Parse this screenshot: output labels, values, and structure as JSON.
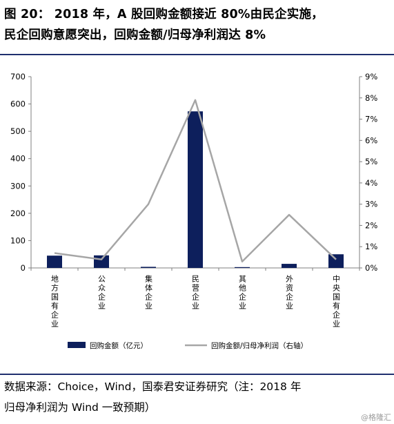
{
  "title": {
    "line1": "图 20： 2018 年，A 股回购金额接近 80%由民企实施，",
    "line2": "民企回购意愿突出，回购金额/归母净利润达 8%"
  },
  "source": {
    "line1": "数据来源：Choice，Wind，国泰君安证券研究（注：2018 年",
    "line2": "归母净利润为 Wind 一致预期）"
  },
  "watermark": "@格隆汇",
  "colors": {
    "bar": "#0d1f5c",
    "line": "#a6a6a6",
    "rule": "#1f2f6e",
    "axis": "#7f7f7f"
  },
  "chart_data": {
    "type": "bar",
    "categories": [
      "地方国有企业",
      "公众企业",
      "集体企业",
      "民营企业",
      "其他企业",
      "外资企业",
      "中央国有企业"
    ],
    "series": [
      {
        "name": "回购金额（亿元）",
        "type": "bar",
        "axis": "left",
        "values": [
          45,
          46,
          4,
          573,
          3,
          15,
          50
        ]
      },
      {
        "name": "回购金额/归母净利润（右轴）",
        "type": "line",
        "axis": "right",
        "values": [
          0.7,
          0.4,
          3.0,
          7.9,
          0.3,
          2.5,
          0.4
        ]
      }
    ],
    "ylim": [
      0,
      700
    ],
    "yticks": [
      "0",
      "100",
      "200",
      "300",
      "400",
      "500",
      "600",
      "700"
    ],
    "y2lim": [
      0,
      9
    ],
    "y2ticks": [
      "0%",
      "1%",
      "2%",
      "3%",
      "4%",
      "5%",
      "6%",
      "7%",
      "8%",
      "9%"
    ],
    "legend": "bottom",
    "grid": false
  }
}
